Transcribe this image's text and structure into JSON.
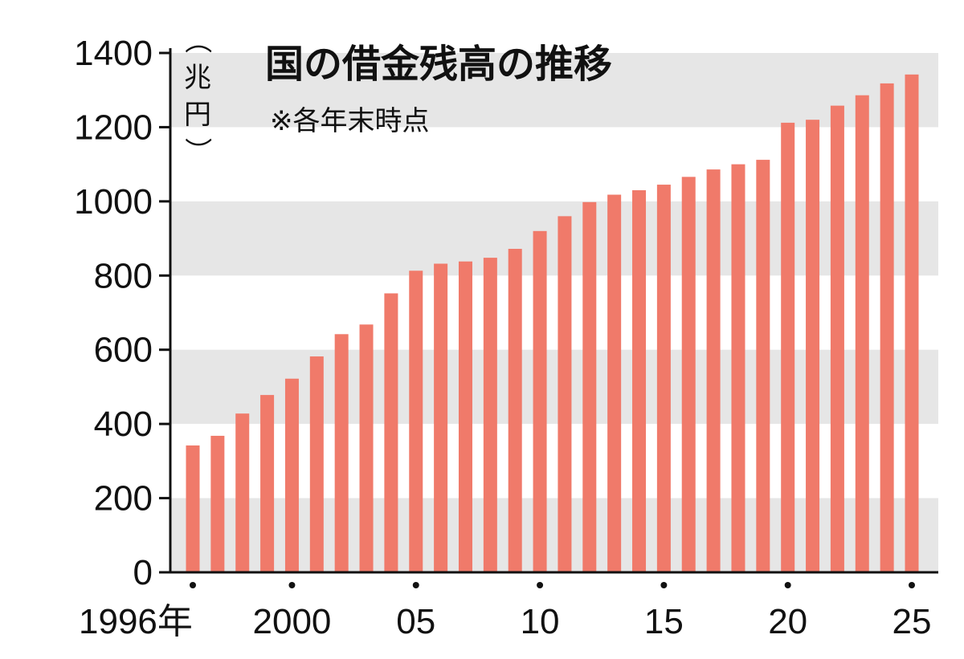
{
  "chart_data": {
    "type": "bar",
    "title": "国の借金残高の推移",
    "subtitle": "※各年末時点",
    "ylabel": "（兆円）",
    "ylim": [
      0,
      1400
    ],
    "yticks": [
      0,
      200,
      400,
      600,
      800,
      1000,
      1200,
      1400
    ],
    "ytick_labels": [
      "0",
      "200",
      "400",
      "600",
      "800",
      "1000",
      "1200",
      "1400"
    ],
    "categories": [
      "1996年",
      "97",
      "98",
      "99",
      "2000",
      "01",
      "02",
      "03",
      "04",
      "05",
      "06",
      "07",
      "08",
      "09",
      "10",
      "11",
      "12",
      "13",
      "14",
      "15",
      "16",
      "17",
      "18",
      "19",
      "20",
      "21",
      "22",
      "23",
      "24",
      "25"
    ],
    "xtick_labels": [
      {
        "index": 0,
        "label": "1996年"
      },
      {
        "index": 4,
        "label": "2000"
      },
      {
        "index": 9,
        "label": "05"
      },
      {
        "index": 14,
        "label": "10"
      },
      {
        "index": 19,
        "label": "15"
      },
      {
        "index": 24,
        "label": "20"
      },
      {
        "index": 29,
        "label": "25"
      }
    ],
    "values": [
      342,
      368,
      428,
      478,
      522,
      582,
      642,
      668,
      752,
      813,
      832,
      838,
      848,
      872,
      920,
      960,
      998,
      1018,
      1030,
      1045,
      1066,
      1086,
      1100,
      1112,
      1212,
      1220,
      1258,
      1286,
      1318,
      1342
    ],
    "grid": "alternating horizontal bands",
    "colors": {
      "bar": "#f07a6a",
      "band": "#e6e6e6",
      "axis": "#111111"
    }
  }
}
